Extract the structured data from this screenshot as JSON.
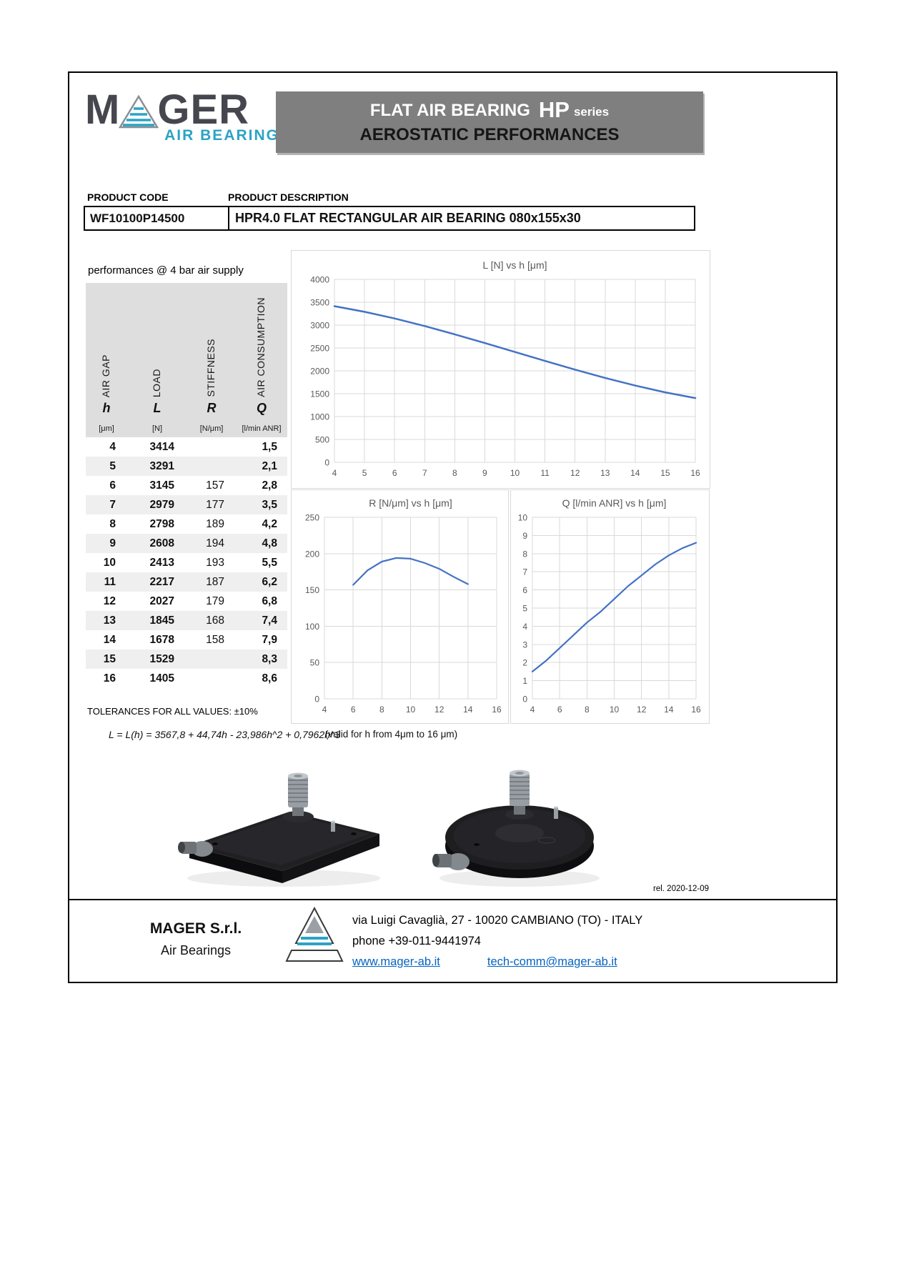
{
  "page": {
    "release_note": "rel. 2020-12-09"
  },
  "colors": {
    "chart_line": "#4472C4",
    "brand_teal": "#2BA3C4",
    "banner_gray": "#7F7F7F",
    "link_blue": "#0563C1"
  },
  "icons": {
    "logo_mark": "striped-triangle-icon",
    "footer_mark": "striped-triangle-icon"
  },
  "header": {
    "logo": {
      "part1": "M",
      "part2": "GER",
      "subtitle": "AIR BEARINGS"
    },
    "banner": {
      "line1_main": "FLAT AIR BEARING",
      "line1_code": "HP",
      "line1_word": "series",
      "line2": "AEROSTATIC PERFORMANCES"
    }
  },
  "product": {
    "code_label": "PRODUCT CODE",
    "description_label": "PRODUCT DESCRIPTION",
    "code": "WF10100P14500",
    "description": "HPR4.0  FLAT RECTANGULAR AIR BEARING 080x155x30"
  },
  "performance": {
    "caption": "performances @ 4 bar air supply",
    "columns": [
      {
        "name": "AIR GAP",
        "symbol": "h",
        "unit": "[μm]"
      },
      {
        "name": "LOAD",
        "symbol": "L",
        "unit": "[N]"
      },
      {
        "name": "STIFFNESS",
        "symbol": "R",
        "unit": "[N/μm]"
      },
      {
        "name": "AIR CONSUMPTION",
        "symbol": "Q",
        "unit": "[l/min ANR]"
      }
    ],
    "rows": [
      [
        "4",
        "3414",
        "",
        "1,5"
      ],
      [
        "5",
        "3291",
        "",
        "2,1"
      ],
      [
        "6",
        "3145",
        "157",
        "2,8"
      ],
      [
        "7",
        "2979",
        "177",
        "3,5"
      ],
      [
        "8",
        "2798",
        "189",
        "4,2"
      ],
      [
        "9",
        "2608",
        "194",
        "4,8"
      ],
      [
        "10",
        "2413",
        "193",
        "5,5"
      ],
      [
        "11",
        "2217",
        "187",
        "6,2"
      ],
      [
        "12",
        "2027",
        "179",
        "6,8"
      ],
      [
        "13",
        "1845",
        "168",
        "7,4"
      ],
      [
        "14",
        "1678",
        "158",
        "7,9"
      ],
      [
        "15",
        "1529",
        "",
        "8,3"
      ],
      [
        "16",
        "1405",
        "",
        "8,6"
      ]
    ],
    "tolerances": "TOLERANCES FOR ALL VALUES: ±10%",
    "formula": "L = L(h) = 3567,8 + 44,74h - 23,986h^2 + 0,7962h^3",
    "formula_validity": "(valid for h  from 4μm to 16 μm)"
  },
  "chart_data": [
    {
      "type": "line",
      "title": "L [N] vs h [μm]",
      "xlabel": "h [μm]",
      "ylabel": "L [N]",
      "x": [
        4,
        5,
        6,
        7,
        8,
        9,
        10,
        11,
        12,
        13,
        14,
        15,
        16
      ],
      "y": [
        3414,
        3291,
        3145,
        2979,
        2798,
        2608,
        2413,
        2217,
        2027,
        1845,
        1678,
        1529,
        1405
      ],
      "xlim": [
        4,
        16
      ],
      "ylim": [
        0,
        4000
      ],
      "x_ticks": [
        4,
        5,
        6,
        7,
        8,
        9,
        10,
        11,
        12,
        13,
        14,
        15,
        16
      ],
      "y_ticks": [
        0,
        500,
        1000,
        1500,
        2000,
        2500,
        3000,
        3500,
        4000
      ],
      "grid": true,
      "legend": "none",
      "line_color": "#4472C4",
      "line_width": 2.5
    },
    {
      "type": "line",
      "title": "R [N/μm] vs h [μm]",
      "xlabel": "h [μm]",
      "ylabel": "R [N/μm]",
      "x": [
        6,
        7,
        8,
        9,
        10,
        11,
        12,
        13,
        14
      ],
      "y": [
        157,
        177,
        189,
        194,
        193,
        187,
        179,
        168,
        158
      ],
      "xlim": [
        4,
        16
      ],
      "ylim": [
        0,
        250
      ],
      "x_ticks": [
        4,
        6,
        8,
        10,
        12,
        14,
        16
      ],
      "y_ticks": [
        0,
        50,
        100,
        150,
        200,
        250
      ],
      "grid": true,
      "legend": "none",
      "line_color": "#4472C4",
      "line_width": 2.2
    },
    {
      "type": "line",
      "title": "Q [l/min ANR] vs h [μm]",
      "xlabel": "h [μm]",
      "ylabel": "Q [l/min ANR]",
      "x": [
        4,
        5,
        6,
        7,
        8,
        9,
        10,
        11,
        12,
        13,
        14,
        15,
        16
      ],
      "y": [
        1.5,
        2.1,
        2.8,
        3.5,
        4.2,
        4.8,
        5.5,
        6.2,
        6.8,
        7.4,
        7.9,
        8.3,
        8.6
      ],
      "xlim": [
        4,
        16
      ],
      "ylim": [
        0,
        10
      ],
      "x_ticks": [
        4,
        6,
        8,
        10,
        12,
        14,
        16
      ],
      "y_ticks": [
        0,
        1,
        2,
        3,
        4,
        5,
        6,
        7,
        8,
        9,
        10
      ],
      "grid": true,
      "legend": "none",
      "line_color": "#4472C4",
      "line_width": 2.2
    }
  ],
  "footer": {
    "company": "MAGER S.r.l.",
    "company_sub": "Air Bearings",
    "address": "via Luigi Cavaglià, 27  - 10020 CAMBIANO (TO) - ITALY",
    "phone": "phone  +39-011-9441974",
    "website": "www.mager-ab.it",
    "email": "tech-comm@mager-ab.it"
  }
}
